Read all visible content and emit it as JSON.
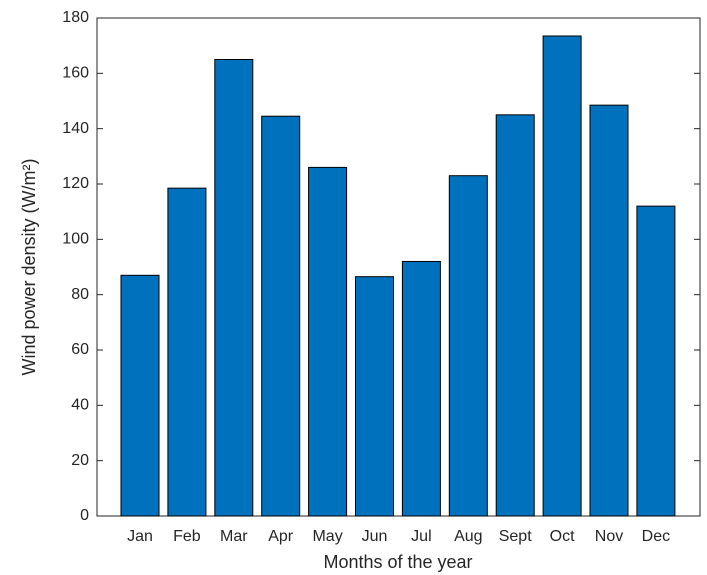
{
  "chart_data": {
    "type": "bar",
    "categories": [
      "Jan",
      "Feb",
      "Mar",
      "Apr",
      "May",
      "Jun",
      "Jul",
      "Aug",
      "Sept",
      "Oct",
      "Nov",
      "Dec"
    ],
    "values": [
      87,
      118.5,
      165,
      144.5,
      126,
      86.5,
      92,
      123,
      145,
      173.5,
      148.5,
      112
    ],
    "color": "#0072bd",
    "ylim": [
      0,
      180
    ],
    "yticks": [
      0,
      20,
      40,
      60,
      80,
      100,
      120,
      140,
      160,
      180
    ],
    "xlabel": "Months of the year",
    "ylabel": "Wind power density (W/m²)",
    "grid": false
  }
}
